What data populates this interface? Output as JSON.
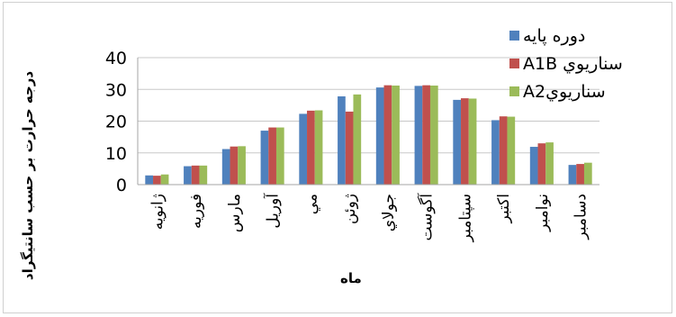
{
  "chart_data": {
    "type": "bar",
    "title": "",
    "xlabel": "ماه",
    "ylabel": "درجه حرارت بر حسب سانتيگراد",
    "ylim": [
      0,
      40
    ],
    "yticks": [
      0,
      10,
      20,
      30,
      40
    ],
    "grid": true,
    "legend_position": "top-right",
    "categories": [
      "ژانويه",
      "فوريه",
      "مارس",
      "آوريل",
      "مي",
      "ژوئن",
      "جولاي",
      "آگوست",
      "سپتامبر",
      "اكتبر",
      "نوامبر",
      "دسامبر"
    ],
    "series": [
      {
        "name": "دوره پايه",
        "color": "#4f81bd",
        "values": [
          2.9,
          5.8,
          11.2,
          17.0,
          22.3,
          27.8,
          30.6,
          31.1,
          26.7,
          20.3,
          11.9,
          6.2
        ]
      },
      {
        "name": "سناريوي A1B",
        "color": "#c0504d",
        "values": [
          2.8,
          6.0,
          12.0,
          18.0,
          23.3,
          23.0,
          31.3,
          31.3,
          27.2,
          21.5,
          13.0,
          6.5
        ]
      },
      {
        "name": "سناريويA2",
        "color": "#9bbb59",
        "values": [
          3.2,
          6.0,
          12.1,
          18.0,
          23.4,
          28.4,
          31.2,
          31.2,
          27.1,
          21.4,
          13.3,
          6.9
        ]
      }
    ]
  }
}
